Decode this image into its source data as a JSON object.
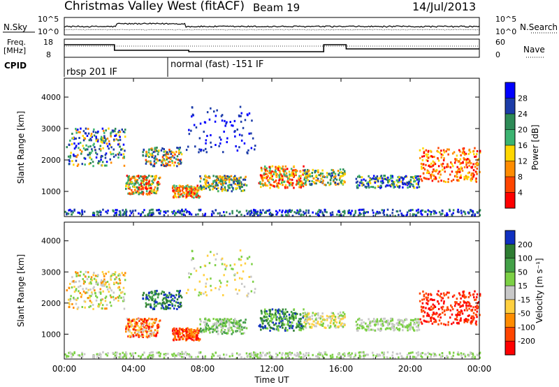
{
  "header": {
    "station": "Christmas Valley West (fitACF)",
    "beam": "Beam 19",
    "date": "14/Jul/2013"
  },
  "noise_panel": {
    "left_label": "N.Sky",
    "right_label": "N.Search",
    "left_ticks": [
      "10^5",
      "10^0"
    ],
    "right_ticks": [
      "10^5",
      "10^0"
    ]
  },
  "freq_panel": {
    "left_label_1": "Freq.",
    "left_label_2": "[MHz]",
    "right_label": "Nave",
    "left_ticks": [
      "18",
      "8"
    ],
    "right_ticks": [
      "60",
      "0"
    ]
  },
  "cpid": {
    "label": "CPID",
    "modes": [
      {
        "name": "rbsp 201 IF",
        "start_hour": 0
      },
      {
        "name": "normal (fast) -151 IF",
        "start_hour": 6
      }
    ]
  },
  "chart_data": [
    {
      "type": "heatmap",
      "name": "power",
      "ylabel": "Slant Range [km]",
      "xlabel": "",
      "y_ticks": [
        "1000",
        "2000",
        "3000",
        "4000"
      ],
      "ylim": [
        200,
        4600
      ],
      "colorbar_label": "Power [dB]",
      "colorbar_ticks": [
        "4",
        "8",
        "12",
        "16",
        "20",
        "24",
        "28"
      ],
      "colorbar_colors": [
        "#0000ff",
        "#1c3ca8",
        "#2e8b57",
        "#3cb371",
        "#ffd700",
        "#ff8c00",
        "#ff4500",
        "#ff0000"
      ]
    },
    {
      "type": "heatmap",
      "name": "velocity",
      "ylabel": "Slant Range [km]",
      "xlabel": "Time UT",
      "y_ticks": [
        "1000",
        "2000",
        "3000",
        "4000"
      ],
      "ylim": [
        200,
        4600
      ],
      "colorbar_label": "Velocity [m s⁻¹]",
      "colorbar_ticks": [
        "200",
        "100",
        "50",
        "15",
        "-15",
        "-50",
        "-100",
        "-200"
      ],
      "colorbar_colors": [
        "#1030c0",
        "#2e7d32",
        "#43a047",
        "#7cd045",
        "#c8c8c8",
        "#ffd040",
        "#ff8c00",
        "#ff4500",
        "#ff0000"
      ]
    }
  ],
  "x_axis": {
    "label": "Time UT",
    "ticks": [
      "00:00",
      "04:00",
      "08:00",
      "12:00",
      "16:00",
      "20:00",
      "00:00"
    ],
    "xlim_hours": [
      0,
      24
    ]
  }
}
